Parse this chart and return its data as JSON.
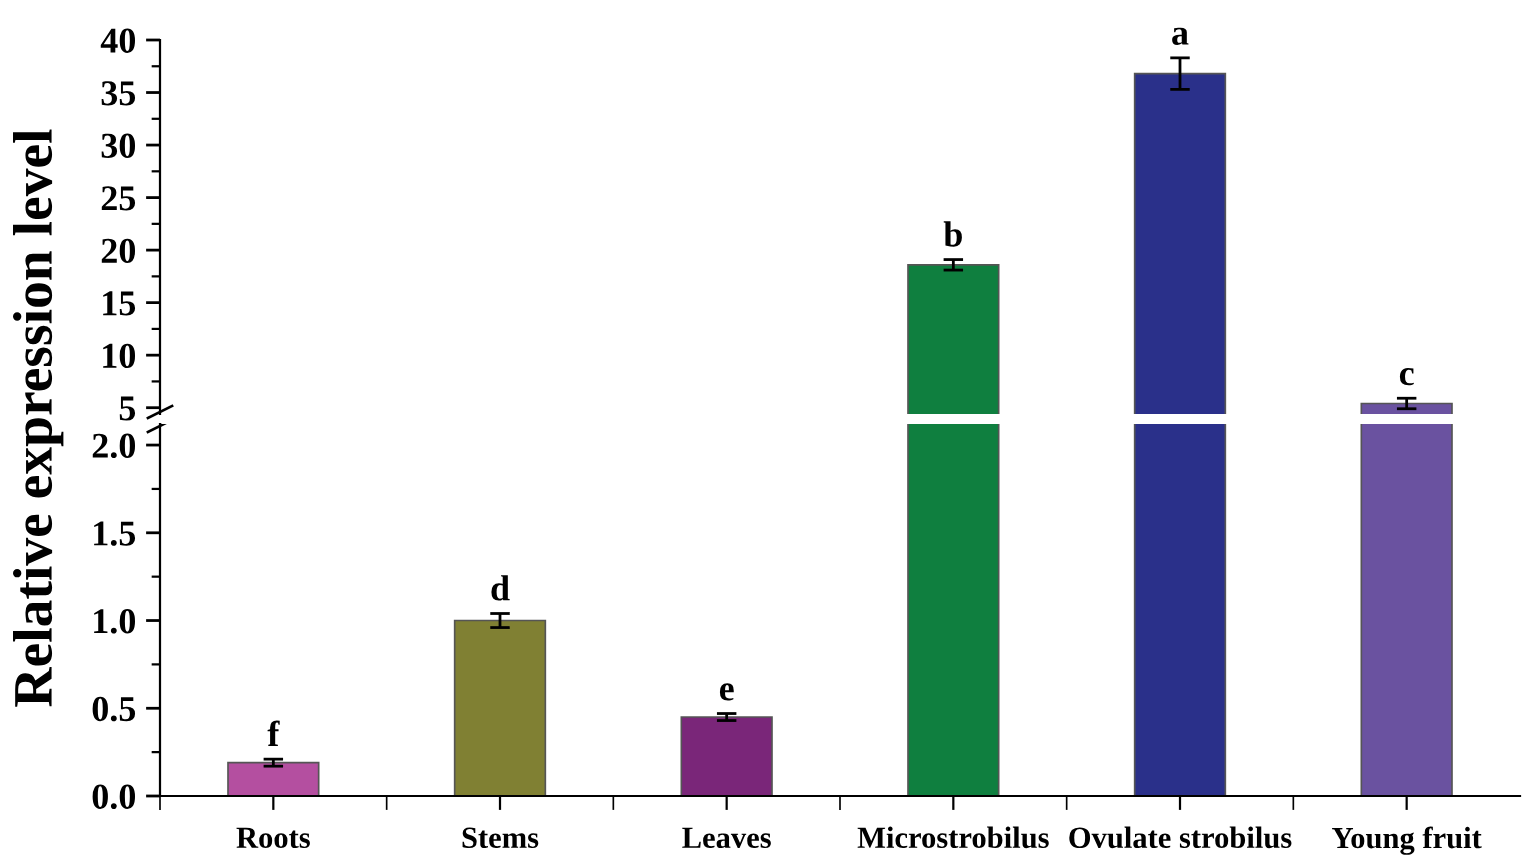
{
  "chart_data": [
    {
      "type": "bar",
      "categories": [
        "Roots",
        "Stems",
        "Leaves",
        "Microstrobilus",
        "Ovulate strobilus",
        "Young fruit"
      ],
      "values": [
        null,
        null,
        null,
        18.6,
        36.8,
        5.4
      ],
      "errors": [
        null,
        null,
        null,
        0.5,
        1.5,
        0.5
      ],
      "colors": [
        "#b44fa0",
        "#808033",
        "#7a2679",
        "#0f7f3f",
        "#2a308a",
        "#6a52a0"
      ],
      "ylim": [
        4.4,
        40
      ],
      "yticks": [
        5,
        10,
        15,
        20,
        25,
        30,
        35,
        40
      ],
      "tick_labels": "y",
      "grid": false,
      "annotations": [
        {
          "text": "b",
          "x": "Microstrobilus",
          "y": 19.1
        },
        {
          "text": "a",
          "x": "Ovulate strobilus",
          "y": 38.3
        },
        {
          "text": "c",
          "x": "Young fruit",
          "y": 5.9
        }
      ]
    },
    {
      "type": "bar",
      "categories": [
        "Roots",
        "Stems",
        "Leaves",
        "Microstrobilus",
        "Ovulate strobilus",
        "Young fruit"
      ],
      "values": [
        0.19,
        1.0,
        0.45,
        null,
        null,
        null
      ],
      "errors": [
        0.02,
        0.04,
        0.02,
        null,
        null,
        null
      ],
      "colors": [
        "#b44fa0",
        "#808033",
        "#7a2679",
        "#0f7f3f",
        "#2a308a",
        "#6a52a0"
      ],
      "ylim": [
        0,
        2.12
      ],
      "yticks": [
        {
          "value": 0,
          "label": "0.0"
        },
        0.5,
        {
          "value": 1,
          "label": "1.0"
        },
        1.5,
        {
          "value": 2,
          "label": "2.0"
        }
      ],
      "ylabel": "Relative expression level",
      "grid": false,
      "annotations": [
        {
          "text": "f",
          "x": "Roots",
          "y": 0.21
        },
        {
          "text": "d",
          "x": "Stems",
          "y": 1.04
        },
        {
          "text": "e",
          "x": "Leaves",
          "y": 0.47
        }
      ]
    }
  ]
}
